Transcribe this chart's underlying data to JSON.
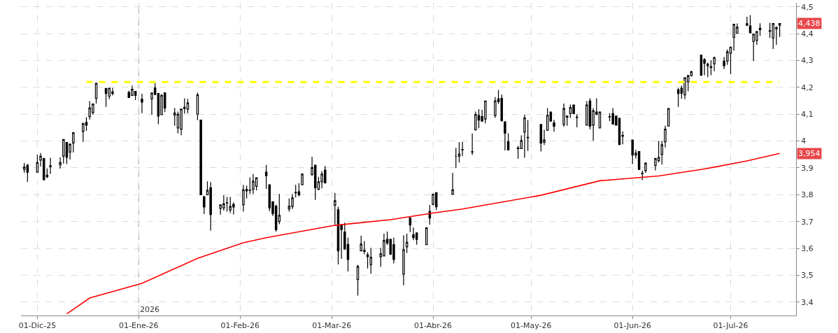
{
  "chart_data": {
    "type": "candlestick",
    "color": "#000000",
    "x": [
      "2025-11-27",
      "2025-11-28",
      "2025-12-01",
      "2025-12-02",
      "2025-12-03",
      "2025-12-04",
      "2025-12-05",
      "2025-12-08",
      "2025-12-09",
      "2025-12-10",
      "2025-12-11",
      "2025-12-12",
      "2025-12-15",
      "2025-12-16",
      "2025-12-17",
      "2025-12-18",
      "2025-12-19",
      "2025-12-22",
      "2025-12-23",
      "2025-12-24",
      "2025-12-29",
      "2025-12-30",
      "2025-12-31",
      "2026-01-02",
      "2026-01-05",
      "2026-01-06",
      "2026-01-07",
      "2026-01-08",
      "2026-01-09",
      "2026-01-12",
      "2026-01-13",
      "2026-01-14",
      "2026-01-15",
      "2026-01-16",
      "2026-01-19",
      "2026-01-20",
      "2026-01-21",
      "2026-01-22",
      "2026-01-23",
      "2026-01-26",
      "2026-01-27",
      "2026-01-28",
      "2026-01-29",
      "2026-01-30",
      "2026-02-02",
      "2026-02-03",
      "2026-02-04",
      "2026-02-05",
      "2026-02-06",
      "2026-02-09",
      "2026-02-10",
      "2026-02-11",
      "2026-02-12",
      "2026-02-13",
      "2026-02-16",
      "2026-02-17",
      "2026-02-18",
      "2026-02-19",
      "2026-02-20",
      "2026-02-23",
      "2026-02-24",
      "2026-02-25",
      "2026-02-26",
      "2026-02-27",
      "2026-03-02",
      "2026-03-03",
      "2026-03-04",
      "2026-03-05",
      "2026-03-06",
      "2026-03-09",
      "2026-03-10",
      "2026-03-11",
      "2026-03-12",
      "2026-03-13",
      "2026-03-16",
      "2026-03-17",
      "2026-03-18",
      "2026-03-19",
      "2026-03-20",
      "2026-03-23",
      "2026-03-24",
      "2026-03-25",
      "2026-03-26",
      "2026-03-27",
      "2026-03-30",
      "2026-03-31",
      "2026-04-01",
      "2026-04-02",
      "2026-04-07",
      "2026-04-08",
      "2026-04-09",
      "2026-04-10",
      "2026-04-13",
      "2026-04-14",
      "2026-04-15",
      "2026-04-16",
      "2026-04-17",
      "2026-04-20",
      "2026-04-21",
      "2026-04-22",
      "2026-04-23",
      "2026-04-24",
      "2026-04-27",
      "2026-04-28",
      "2026-04-29",
      "2026-04-30",
      "2026-05-04",
      "2026-05-05",
      "2026-05-06",
      "2026-05-07",
      "2026-05-08",
      "2026-05-11",
      "2026-05-12",
      "2026-05-13",
      "2026-05-14",
      "2026-05-15",
      "2026-05-18",
      "2026-05-19",
      "2026-05-20",
      "2026-05-21",
      "2026-05-22",
      "2026-05-25",
      "2026-05-26",
      "2026-05-27",
      "2026-05-28",
      "2026-05-29",
      "2026-06-01",
      "2026-06-02",
      "2026-06-03",
      "2026-06-04",
      "2026-06-05",
      "2026-06-08",
      "2026-06-09",
      "2026-06-10",
      "2026-06-11",
      "2026-06-12",
      "2026-06-15",
      "2026-06-16",
      "2026-06-17",
      "2026-06-18",
      "2026-06-19",
      "2026-06-22",
      "2026-06-23",
      "2026-06-24",
      "2026-06-25",
      "2026-06-26",
      "2026-06-29",
      "2026-06-30",
      "2026-07-01",
      "2026-07-02",
      "2026-07-03",
      "2026-07-06",
      "2026-07-07",
      "2026-07-08",
      "2026-07-09",
      "2026-07-10",
      "2026-07-13",
      "2026-07-14",
      "2026-07-15",
      "2026-07-16"
    ],
    "ohlc": [
      [
        3.894,
        3.918,
        3.882,
        3.903
      ],
      [
        3.91,
        3.914,
        3.848,
        3.884
      ],
      [
        3.884,
        3.949,
        3.882,
        3.92
      ],
      [
        3.929,
        3.955,
        3.905,
        3.943
      ],
      [
        3.935,
        3.937,
        3.853,
        3.856
      ],
      [
        3.873,
        3.898,
        3.862,
        3.867
      ],
      [
        3.905,
        3.938,
        3.877,
        3.908
      ],
      [
        3.911,
        3.939,
        3.897,
        3.92
      ],
      [
        3.944,
        4.006,
        3.916,
        4.006
      ],
      [
        3.995,
        3.995,
        3.914,
        3.939
      ],
      [
        3.959,
        3.991,
        3.931,
        3.988
      ],
      [
        3.993,
        4.031,
        3.957,
        4.031
      ],
      [
        4.036,
        4.068,
        3.997,
        4.065
      ],
      [
        4.07,
        4.089,
        4.038,
        4.059
      ],
      [
        4.091,
        4.149,
        4.08,
        4.123
      ],
      [
        4.106,
        4.14,
        4.098,
        4.138
      ],
      [
        4.159,
        4.217,
        4.14,
        4.215
      ],
      [
        4.196,
        4.196,
        4.127,
        4.177
      ],
      [
        4.167,
        4.198,
        4.156,
        4.197
      ],
      [
        4.177,
        4.198,
        4.17,
        4.183
      ],
      [
        4.181,
        4.187,
        4.162,
        4.162
      ],
      [
        4.17,
        4.207,
        4.168,
        4.193
      ],
      [
        4.185,
        4.185,
        4.153,
        4.17
      ],
      [
        4.156,
        4.176,
        4.104,
        4.145
      ],
      [
        4.157,
        4.179,
        4.098,
        4.179
      ],
      [
        4.198,
        4.216,
        4.17,
        4.174
      ],
      [
        4.177,
        4.177,
        4.063,
        4.093
      ],
      [
        4.098,
        4.175,
        4.098,
        4.17
      ],
      [
        4.18,
        4.18,
        4.108,
        4.123
      ],
      [
        4.096,
        4.123,
        4.057,
        4.104
      ],
      [
        4.049,
        4.11,
        4.029,
        4.1
      ],
      [
        4.044,
        4.119,
        4.022,
        4.119
      ],
      [
        4.121,
        4.159,
        4.102,
        4.126
      ],
      [
        4.119,
        4.157,
        4.104,
        4.142
      ],
      [
        4.1,
        4.18,
        4.078,
        4.172
      ],
      [
        4.078,
        4.08,
        3.8,
        3.8
      ],
      [
        3.792,
        3.796,
        3.728,
        3.754
      ],
      [
        3.8,
        3.85,
        3.8,
        3.816
      ],
      [
        3.826,
        3.847,
        3.666,
        3.726
      ],
      [
        3.749,
        3.764,
        3.726,
        3.762
      ],
      [
        3.751,
        3.798,
        3.741,
        3.766
      ],
      [
        3.769,
        3.792,
        3.737,
        3.77
      ],
      [
        3.743,
        3.792,
        3.732,
        3.756
      ],
      [
        3.764,
        3.771,
        3.726,
        3.754
      ],
      [
        3.763,
        3.837,
        3.737,
        3.818
      ],
      [
        3.82,
        3.834,
        3.786,
        3.814
      ],
      [
        3.817,
        3.865,
        3.803,
        3.816
      ],
      [
        3.82,
        3.877,
        3.803,
        3.85
      ],
      [
        3.831,
        3.865,
        3.816,
        3.863
      ],
      [
        3.884,
        3.911,
        3.822,
        3.871
      ],
      [
        3.837,
        3.837,
        3.739,
        3.751
      ],
      [
        3.774,
        3.774,
        3.721,
        3.73
      ],
      [
        3.757,
        3.763,
        3.662,
        3.67
      ],
      [
        3.7,
        3.803,
        3.69,
        3.723
      ],
      [
        3.747,
        3.786,
        3.737,
        3.757
      ],
      [
        3.756,
        3.803,
        3.747,
        3.788
      ],
      [
        3.807,
        3.837,
        3.79,
        3.809
      ],
      [
        3.811,
        3.843,
        3.794,
        3.8
      ],
      [
        3.837,
        3.88,
        3.837,
        3.877
      ],
      [
        3.875,
        3.941,
        3.871,
        3.901
      ],
      [
        3.91,
        3.91,
        3.781,
        3.826
      ],
      [
        3.82,
        3.867,
        3.817,
        3.848
      ],
      [
        3.848,
        3.888,
        3.824,
        3.877
      ],
      [
        3.892,
        3.907,
        3.841,
        3.845
      ],
      [
        3.761,
        3.807,
        3.689,
        3.778
      ],
      [
        3.744,
        3.755,
        3.54,
        3.591
      ],
      [
        3.685,
        3.691,
        3.561,
        3.67
      ],
      [
        3.661,
        3.696,
        3.597,
        3.597
      ],
      [
        3.615,
        3.64,
        3.514,
        3.559
      ],
      [
        3.484,
        3.539,
        3.424,
        3.533
      ],
      [
        3.591,
        3.647,
        3.589,
        3.616
      ],
      [
        3.589,
        3.627,
        3.578,
        3.593
      ],
      [
        3.576,
        3.586,
        3.525,
        3.569
      ],
      [
        3.539,
        3.602,
        3.506,
        3.567
      ],
      [
        3.569,
        3.602,
        3.531,
        3.58
      ],
      [
        3.572,
        3.655,
        3.572,
        3.629
      ],
      [
        3.634,
        3.663,
        3.613,
        3.62
      ],
      [
        3.634,
        3.636,
        3.576,
        3.578
      ],
      [
        3.614,
        3.64,
        3.544,
        3.559
      ],
      [
        3.505,
        3.649,
        3.463,
        3.595
      ],
      [
        3.606,
        3.655,
        3.583,
        3.623
      ],
      [
        3.714,
        3.715,
        3.661,
        3.687
      ],
      [
        3.651,
        3.678,
        3.631,
        3.64
      ],
      [
        3.657,
        3.661,
        3.614,
        3.634
      ],
      [
        3.614,
        3.677,
        3.614,
        3.677
      ],
      [
        3.738,
        3.762,
        3.689,
        3.713
      ],
      [
        3.764,
        3.804,
        3.761,
        3.802
      ],
      [
        3.808,
        3.808,
        3.743,
        3.755
      ],
      [
        3.802,
        3.882,
        3.802,
        3.818
      ],
      [
        3.943,
        3.975,
        3.899,
        3.943
      ],
      [
        3.943,
        3.996,
        3.92,
        3.952
      ],
      [
        3.967,
        3.997,
        3.944,
        3.969
      ],
      [
        3.959,
        4.028,
        3.948,
        3.96
      ],
      [
        4.042,
        4.11,
        4.039,
        4.099
      ],
      [
        4.095,
        4.119,
        4.048,
        4.078
      ],
      [
        4.091,
        4.116,
        4.072,
        4.074
      ],
      [
        4.082,
        4.149,
        4.066,
        4.149
      ],
      [
        4.095,
        4.164,
        4.086,
        4.149
      ],
      [
        4.157,
        4.19,
        4.138,
        4.147
      ],
      [
        4.159,
        4.173,
        4.072,
        4.076
      ],
      [
        4.072,
        4.072,
        3.965,
        4.029
      ],
      [
        3.998,
        4.029,
        3.965,
        3.967
      ],
      [
        3.974,
        3.982,
        3.934,
        3.972
      ],
      [
        3.972,
        4.021,
        3.972,
        4.002
      ],
      [
        4.034,
        4.098,
        3.938,
        4.086
      ],
      [
        4.014,
        4.078,
        3.963,
        4.012
      ],
      [
        4.062,
        4.062,
        3.961,
        3.992
      ],
      [
        3.995,
        4.042,
        3.985,
        4.004
      ],
      [
        4.04,
        4.123,
        4.038,
        4.096
      ],
      [
        4.108,
        4.11,
        4.072,
        4.074
      ],
      [
        4.068,
        4.079,
        4.035,
        4.055
      ],
      [
        4.062,
        4.14,
        4.053,
        4.121
      ],
      [
        4.093,
        4.095,
        4.057,
        4.089
      ],
      [
        4.102,
        4.136,
        4.086,
        4.125
      ],
      [
        4.134,
        4.134,
        4.1,
        4.102
      ],
      [
        4.089,
        4.099,
        4.051,
        4.088
      ],
      [
        4.059,
        4.149,
        4.059,
        4.134
      ],
      [
        4.149,
        4.159,
        4.044,
        4.055
      ],
      [
        4.059,
        4.123,
        4.001,
        4.113
      ],
      [
        4.108,
        4.159,
        4.098,
        4.099
      ],
      [
        4.049,
        4.11,
        4.049,
        4.108
      ],
      [
        4.091,
        4.104,
        4.074,
        4.09
      ],
      [
        4.102,
        4.123,
        4.062,
        4.063
      ],
      [
        4.093,
        4.093,
        4.059,
        4.059
      ],
      [
        4.085,
        4.085,
        3.985,
        3.987
      ],
      [
        4.018,
        4.036,
        3.988,
        4.021
      ],
      [
        4.004,
        4.004,
        3.914,
        3.948
      ],
      [
        3.948,
        3.967,
        3.935,
        3.955
      ],
      [
        3.961,
        3.961,
        3.892,
        3.894
      ],
      [
        3.88,
        3.89,
        3.854,
        3.879
      ],
      [
        3.89,
        3.92,
        3.882,
        3.918
      ],
      [
        3.909,
        3.937,
        3.89,
        3.935
      ],
      [
        3.927,
        4.001,
        3.92,
        3.939
      ],
      [
        3.95,
        4.001,
        3.912,
        3.986
      ],
      [
        3.997,
        4.057,
        3.976,
        4.044
      ],
      [
        4.056,
        4.123,
        4.056,
        4.121
      ],
      [
        4.191,
        4.198,
        4.127,
        4.177
      ],
      [
        4.197,
        4.207,
        4.157,
        4.178
      ],
      [
        4.172,
        4.237,
        4.156,
        4.236
      ],
      [
        4.221,
        4.247,
        4.185,
        4.243
      ],
      [
        4.243,
        4.262,
        4.243,
        4.258
      ],
      [
        4.32,
        4.321,
        4.243,
        4.245
      ],
      [
        4.303,
        4.309,
        4.245,
        4.29
      ],
      [
        4.281,
        4.292,
        4.238,
        4.286
      ],
      [
        4.274,
        4.301,
        4.245,
        4.277
      ],
      [
        4.288,
        4.314,
        4.26,
        4.311
      ],
      [
        4.298,
        4.313,
        4.268,
        4.281
      ],
      [
        4.298,
        4.341,
        4.284,
        4.332
      ],
      [
        4.327,
        4.351,
        4.249,
        4.35
      ],
      [
        4.386,
        4.437,
        4.337,
        4.435
      ],
      [
        4.401,
        4.438,
        4.401,
        4.424
      ],
      [
        4.431,
        4.463,
        4.429,
        4.437
      ],
      [
        4.429,
        4.469,
        4.401,
        4.403
      ],
      [
        4.371,
        4.399,
        4.298,
        4.398
      ],
      [
        4.375,
        4.409,
        4.358,
        4.408
      ],
      [
        4.415,
        4.439,
        4.392,
        4.42
      ],
      [
        4.409,
        4.441,
        4.384,
        4.411
      ],
      [
        4.384,
        4.439,
        4.343,
        4.438
      ],
      [
        4.422,
        4.428,
        4.358,
        4.418
      ],
      [
        4.431,
        4.439,
        4.388,
        4.438
      ]
    ],
    "series": [
      {
        "type": "line",
        "color": "#ff0000",
        "x": [
          "2025-12-10",
          "2025-12-17",
          "2026-01-02",
          "2026-01-19",
          "2026-02-02",
          "2026-02-09",
          "2026-03-02",
          "2026-03-19",
          "2026-04-01",
          "2026-04-10",
          "2026-05-04",
          "2026-05-22",
          "2026-05-27",
          "2026-06-09",
          "2026-06-23",
          "2026-07-06",
          "2026-07-16"
        ],
        "values": [
          3.356,
          3.415,
          3.47,
          3.563,
          3.621,
          3.64,
          3.686,
          3.707,
          3.732,
          3.747,
          3.798,
          3.852,
          3.857,
          3.87,
          3.896,
          3.926,
          3.954
        ]
      },
      {
        "type": "line",
        "color": "#ffff00",
        "line_style": "dashed",
        "x": [
          "2025-12-16",
          "2026-07-16"
        ],
        "values": [
          4.22,
          4.22
        ]
      }
    ],
    "ref_lines": [
      {
        "axis": "x",
        "value": "2026-01-01",
        "label": "2026",
        "color": "#c0c0c0",
        "line_style": "dashed"
      }
    ],
    "annotations": [
      {
        "text": "4,438",
        "x": "2026-07-16",
        "y": 4.438
      },
      {
        "text": "3,954",
        "x": "2026-07-16",
        "y": 3.954
      }
    ],
    "xlim": [
      "2025-11-26",
      "2026-07-21"
    ],
    "xticks": [
      {
        "value": "2025-12-01",
        "label": "01-Dic-25"
      },
      {
        "value": "2026-01-01",
        "label": "01-Ene-26"
      },
      {
        "value": "2026-02-01",
        "label": "01-Feb-26"
      },
      {
        "value": "2026-03-01",
        "label": "01-Mar-26"
      },
      {
        "value": "2026-04-01",
        "label": "01-Abr-26"
      },
      {
        "value": "2026-05-01",
        "label": "01-May-26"
      },
      {
        "value": "2026-06-01",
        "label": "01-Jun-26"
      },
      {
        "value": "2026-07-01",
        "label": "01-Jul-26"
      }
    ],
    "ylim": [
      3.35,
      4.515
    ],
    "yticks": [
      {
        "value": 3.4,
        "label": "3,4"
      },
      {
        "value": 3.5,
        "label": "3,5"
      },
      {
        "value": 3.6,
        "label": "3,6"
      },
      {
        "value": 3.7,
        "label": "3,7"
      },
      {
        "value": 3.8,
        "label": "3,8"
      },
      {
        "value": 3.9,
        "label": "3,9"
      },
      4,
      {
        "value": 4.1,
        "label": "4,1"
      },
      {
        "value": 4.2,
        "label": "4,2"
      },
      {
        "value": 4.3,
        "label": "4,3"
      },
      {
        "value": 4.4,
        "label": "4,4"
      },
      {
        "value": 4.5,
        "label": "4,5"
      }
    ],
    "grid": true
  }
}
